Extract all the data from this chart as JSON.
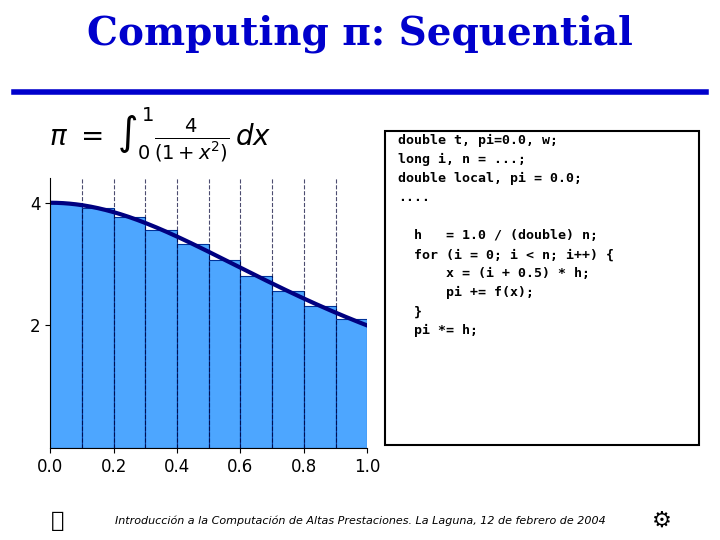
{
  "title": "Computing π: Sequential",
  "title_color": "#0000CC",
  "title_fontsize": 28,
  "bg_color": "#FFFFFF",
  "bar_color": "#4da6ff",
  "bar_edge_color": "#003399",
  "curve_color": "#000080",
  "curve_linewidth": 3,
  "n_bars": 10,
  "x_min": 0.0,
  "x_max": 1.0,
  "y_min": 0.0,
  "y_max": 4.4,
  "yticks": [
    2,
    4
  ],
  "xticks": [
    0.0,
    0.2,
    0.4,
    0.6,
    0.8,
    1.0
  ],
  "formula_text": "$\\pi = \\int_0^1 \\frac{4}{(1+x^2)}dx$",
  "code_lines": [
    "double t, pi=0.0, w;",
    "long i, n = ...;",
    "double local, pi = 0.0;",
    "....",
    "",
    "  h   = 1.0 / (double) n;",
    "  for (i = 0; i < n; i++) {",
    "      x = (i + 0.5) * h;",
    "      pi += f(x);",
    "  }",
    "  pi *= h;"
  ],
  "footer_text": "Introducción a la Computación de Altas Prestaciones. La Laguna, 12 de febrero de 2004",
  "header_line_color": "#0000CC",
  "dashed_line_color": "#000033"
}
